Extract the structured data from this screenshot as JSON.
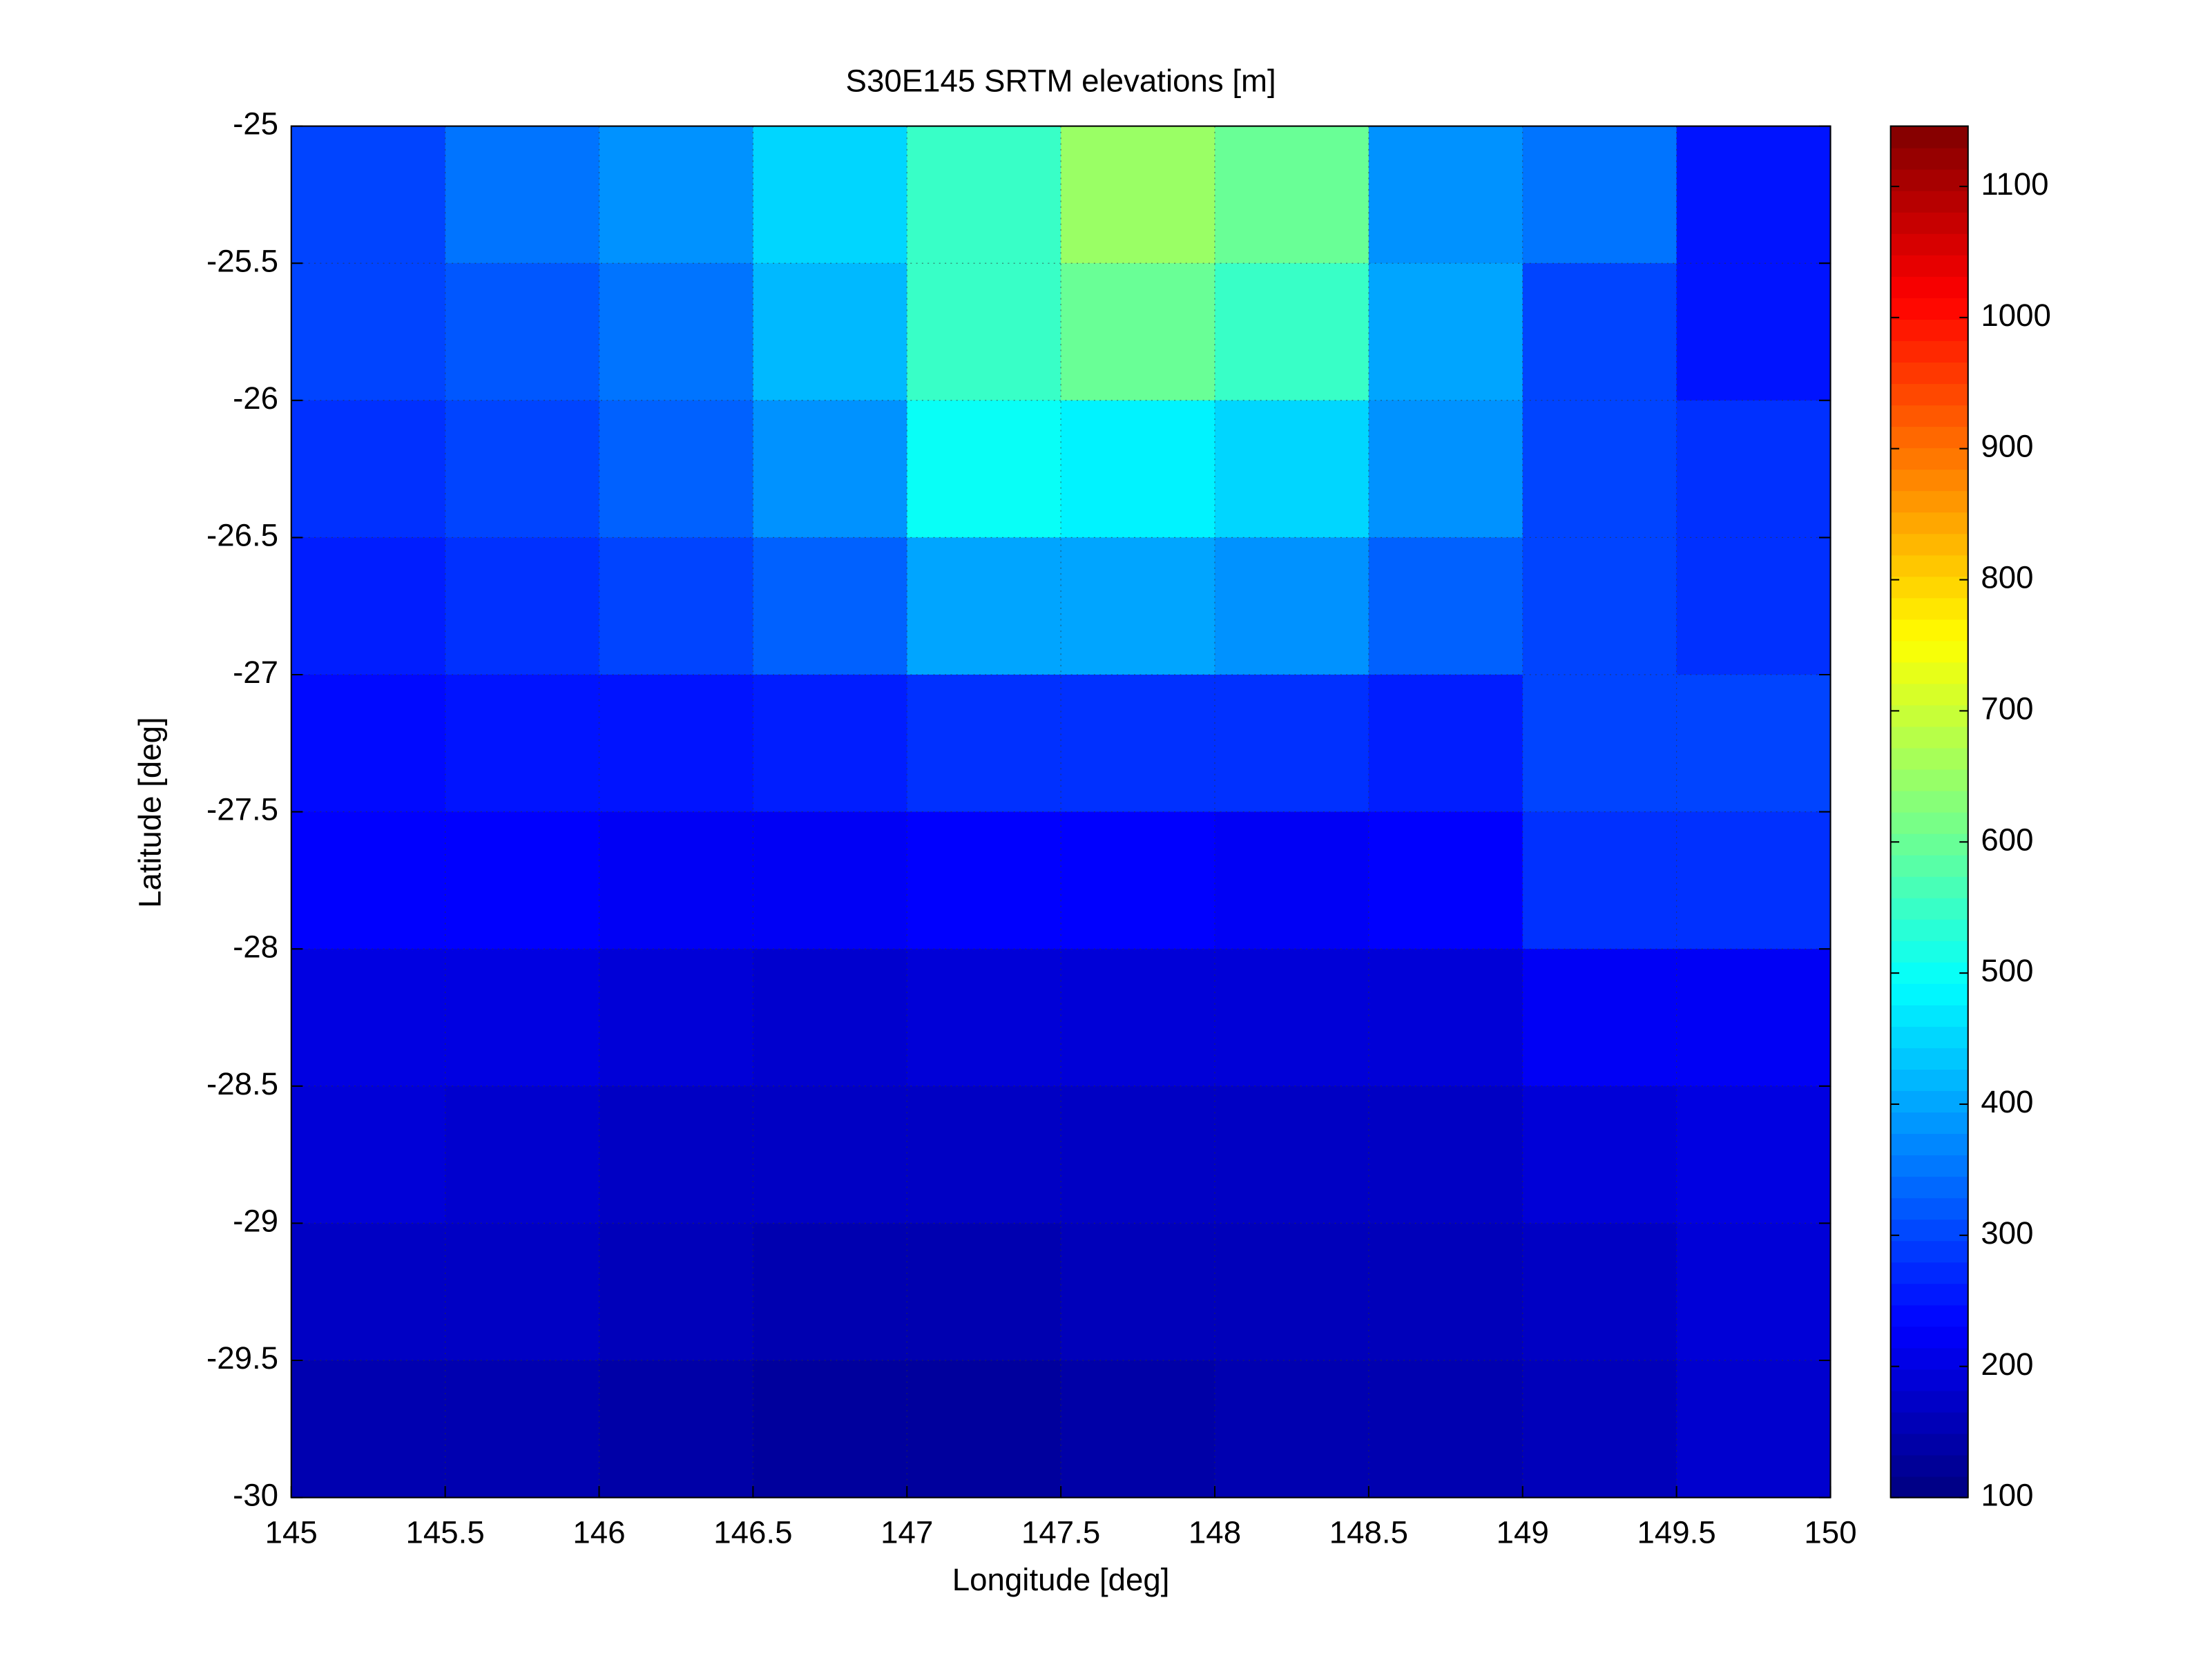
{
  "chart_data": {
    "type": "heatmap",
    "title": "S30E145 SRTM elevations [m]",
    "x_label": "Longitude [deg]",
    "y_label": "Latitude [deg]",
    "x_edges": [
      145,
      145.5,
      146,
      146.5,
      147,
      147.5,
      148,
      148.5,
      149,
      149.5,
      150
    ],
    "y_edges": [
      -25,
      -25.5,
      -26,
      -26.5,
      -27,
      -27.5,
      -28,
      -28.5,
      -29,
      -29.5,
      -30
    ],
    "z": [
      [
        300,
        350,
        380,
        450,
        550,
        650,
        600,
        380,
        350,
        250
      ],
      [
        300,
        320,
        350,
        420,
        550,
        600,
        550,
        400,
        300,
        250
      ],
      [
        280,
        300,
        330,
        380,
        500,
        480,
        450,
        380,
        300,
        280
      ],
      [
        260,
        280,
        300,
        330,
        400,
        400,
        380,
        330,
        300,
        280
      ],
      [
        240,
        250,
        250,
        260,
        280,
        280,
        280,
        260,
        300,
        300
      ],
      [
        230,
        230,
        220,
        220,
        230,
        230,
        220,
        230,
        280,
        280
      ],
      [
        200,
        200,
        190,
        180,
        190,
        190,
        190,
        190,
        220,
        220
      ],
      [
        190,
        180,
        170,
        170,
        170,
        170,
        170,
        170,
        190,
        200
      ],
      [
        170,
        170,
        160,
        150,
        150,
        160,
        160,
        160,
        170,
        190
      ],
      [
        150,
        150,
        140,
        130,
        130,
        140,
        150,
        150,
        160,
        180
      ]
    ],
    "colormap": "jet",
    "clim": [
      100,
      1146
    ],
    "cticks": [
      100,
      200,
      300,
      400,
      500,
      600,
      700,
      800,
      900,
      1000,
      1100
    ],
    "xlim": [
      145,
      150
    ],
    "ylim": [
      -30,
      -25
    ],
    "xticks": [
      145,
      145.5,
      146,
      146.5,
      147,
      147.5,
      148,
      148.5,
      149,
      149.5,
      150
    ],
    "yticks": [
      -25,
      -25.5,
      -26,
      -26.5,
      -27,
      -27.5,
      -28,
      -28.5,
      -29,
      -29.5,
      -30
    ],
    "grid": true
  }
}
